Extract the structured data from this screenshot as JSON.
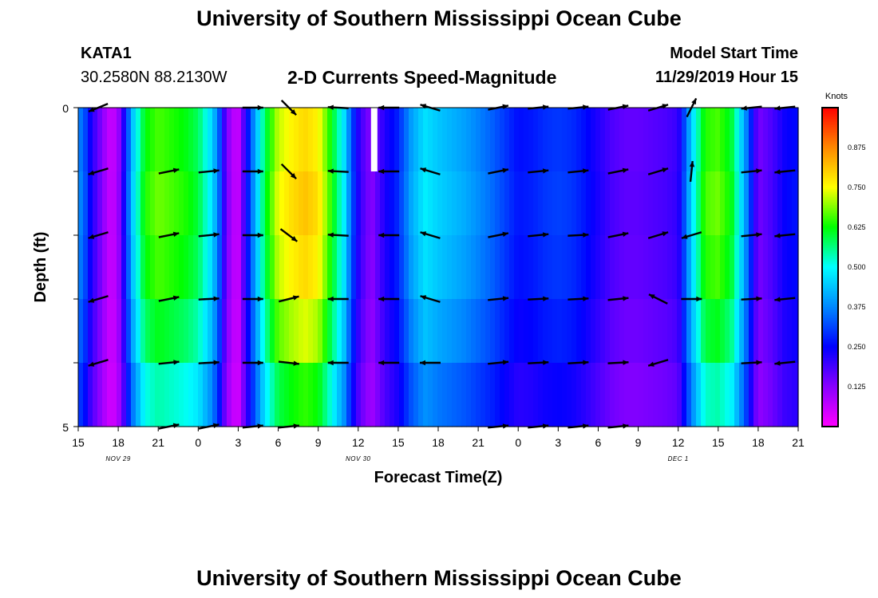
{
  "header": {
    "title": "University of Southern Mississippi Ocean Cube",
    "station": "KATA1",
    "coords": "30.2580N 88.2130W",
    "chart_title": "2-D Currents Speed-Magnitude",
    "model_label": "Model Start Time",
    "model_time": "11/29/2019 Hour 15"
  },
  "footer": {
    "title": "University of Southern Mississippi Ocean Cube"
  },
  "colors": {
    "arrow": "#000000",
    "missing": "#ffffff",
    "scale": [
      "#ff00ff",
      "#8800ff",
      "#0000ff",
      "#0088ff",
      "#00ffff",
      "#00ff00",
      "#ffff00",
      "#ff8800",
      "#ff0000"
    ]
  },
  "chart_data": {
    "type": "heatmap",
    "title": "2-D Currents Speed-Magnitude",
    "xlabel": "Forecast Time(Z)",
    "ylabel": "Depth (ft)",
    "ylim": [
      0,
      5
    ],
    "y_ticks": [
      "0",
      "5"
    ],
    "x_ticks": [
      "15",
      "18",
      "21",
      "0",
      "3",
      "6",
      "9",
      "12",
      "15",
      "18",
      "21",
      "0",
      "3",
      "6",
      "9",
      "12",
      "15",
      "18",
      "21"
    ],
    "date_labels": [
      {
        "text": "NOV 29",
        "at_hour": 3
      },
      {
        "text": "NOV 30",
        "at_hour": 21
      },
      {
        "text": "DEC 1",
        "at_hour": 45
      }
    ],
    "x_range_hours": [
      0,
      54
    ],
    "colorbar": {
      "title": "Knots",
      "range": [
        0.0,
        1.0
      ],
      "ticks": [
        "0.125",
        "0.250",
        "0.375",
        "0.500",
        "0.625",
        "0.750",
        "0.875"
      ]
    },
    "depth_rows": 5,
    "speed_profile": [
      [
        0,
        0.38
      ],
      [
        0.5,
        0.32
      ],
      [
        1,
        0.22
      ],
      [
        1.5,
        0.16
      ],
      [
        2,
        0.1
      ],
      [
        2.5,
        0.05
      ],
      [
        3,
        0.1
      ],
      [
        3.5,
        0.25
      ],
      [
        4,
        0.42
      ],
      [
        5,
        0.62
      ],
      [
        6,
        0.66
      ],
      [
        7,
        0.64
      ],
      [
        8,
        0.62
      ],
      [
        9,
        0.58
      ],
      [
        10,
        0.46
      ],
      [
        10.5,
        0.36
      ],
      [
        11,
        0.18
      ],
      [
        11.5,
        0.08
      ],
      [
        12,
        0.06
      ],
      [
        12.5,
        0.2
      ],
      [
        13,
        0.34
      ],
      [
        14,
        0.58
      ],
      [
        15,
        0.72
      ],
      [
        16,
        0.76
      ],
      [
        17,
        0.79
      ],
      [
        18,
        0.76
      ],
      [
        19,
        0.62
      ],
      [
        20,
        0.46
      ],
      [
        20.5,
        0.32
      ],
      [
        21,
        0.22
      ],
      [
        21.5,
        0.16
      ],
      [
        22,
        0.12
      ],
      [
        23,
        0.22
      ],
      [
        24,
        0.28
      ],
      [
        25,
        0.4
      ],
      [
        26,
        0.47
      ],
      [
        27,
        0.44
      ],
      [
        28,
        0.42
      ],
      [
        29,
        0.4
      ],
      [
        30,
        0.37
      ],
      [
        31,
        0.34
      ],
      [
        32,
        0.3
      ],
      [
        33,
        0.26
      ],
      [
        34,
        0.27
      ],
      [
        35,
        0.29
      ],
      [
        36,
        0.3
      ],
      [
        37,
        0.29
      ],
      [
        38,
        0.26
      ],
      [
        39,
        0.22
      ],
      [
        40,
        0.18
      ],
      [
        41,
        0.16
      ],
      [
        42,
        0.16
      ],
      [
        43,
        0.17
      ],
      [
        44,
        0.18
      ],
      [
        45,
        0.2
      ],
      [
        46,
        0.45
      ],
      [
        47,
        0.64
      ],
      [
        48,
        0.66
      ],
      [
        49,
        0.6
      ],
      [
        50,
        0.4
      ],
      [
        51,
        0.14
      ],
      [
        52,
        0.18
      ],
      [
        53,
        0.24
      ],
      [
        54,
        0.26
      ]
    ],
    "depth_factor": [
      1.0,
      1.03,
      1.0,
      0.93,
      0.82
    ],
    "missing_cells": [
      {
        "hour": 22.2,
        "depth_row": 0
      }
    ],
    "arrows": [
      {
        "hour": 1.5,
        "dir": [
          [
            -1,
            0.4
          ],
          [
            -1,
            0.3
          ],
          [
            -1,
            0.3
          ],
          [
            -1,
            0.3
          ],
          [
            -1,
            0.3
          ]
        ]
      },
      {
        "hour": 6.8,
        "dir": [
          null,
          [
            1,
            -0.2
          ],
          [
            1,
            -0.2
          ],
          [
            1,
            -0.2
          ],
          [
            1,
            -0.1
          ],
          [
            1,
            -0.2
          ]
        ]
      },
      {
        "hour": 9.8,
        "dir": [
          null,
          [
            1,
            -0.1
          ],
          [
            1,
            -0.1
          ],
          [
            1,
            -0.05
          ],
          [
            1,
            -0.05
          ],
          [
            1,
            -0.2
          ]
        ]
      },
      {
        "hour": 13.1,
        "dir": [
          [
            1,
            0
          ],
          [
            1,
            0
          ],
          [
            1,
            0
          ],
          [
            1,
            0
          ],
          [
            1,
            0
          ],
          [
            1,
            -0.1
          ]
        ]
      },
      {
        "hour": 15.8,
        "dir": [
          [
            0.7,
            0.7
          ],
          [
            0.7,
            0.7
          ],
          [
            0.8,
            0.6
          ],
          [
            0.8,
            -0.2
          ],
          [
            0.9,
            0.1
          ],
          [
            1,
            -0.1
          ]
        ]
      },
      {
        "hour": 19.5,
        "dir": [
          [
            -1,
            -0.05
          ],
          [
            -1,
            -0.05
          ],
          [
            -1,
            -0.05
          ],
          [
            -1,
            0
          ],
          [
            -1,
            0
          ]
        ]
      },
      {
        "hour": 23.3,
        "dir": [
          [
            -1,
            0
          ],
          [
            -1,
            0
          ],
          [
            -1,
            0
          ],
          [
            -1,
            0
          ],
          [
            -1,
            0
          ]
        ]
      },
      {
        "hour": 26.4,
        "dir": [
          [
            -1,
            -0.3
          ],
          [
            -1,
            -0.3
          ],
          [
            -1,
            -0.3
          ],
          [
            -1,
            -0.3
          ],
          [
            -1,
            0
          ]
        ]
      },
      {
        "hour": 31.5,
        "dir": [
          [
            1,
            -0.2
          ],
          [
            1,
            -0.2
          ],
          [
            1,
            -0.2
          ],
          [
            1,
            -0.1
          ],
          [
            1,
            -0.1
          ],
          [
            1,
            -0.1
          ]
        ]
      },
      {
        "hour": 34.5,
        "dir": [
          [
            1,
            -0.1
          ],
          [
            1,
            -0.1
          ],
          [
            1,
            -0.1
          ],
          [
            1,
            -0.05
          ],
          [
            1,
            -0.05
          ],
          [
            1,
            -0.1
          ]
        ]
      },
      {
        "hour": 37.5,
        "dir": [
          [
            1,
            -0.1
          ],
          [
            1,
            -0.1
          ],
          [
            1,
            -0.05
          ],
          [
            1,
            -0.05
          ],
          [
            1,
            -0.05
          ],
          [
            1,
            -0.1
          ]
        ]
      },
      {
        "hour": 40.5,
        "dir": [
          [
            1,
            -0.2
          ],
          [
            1,
            -0.2
          ],
          [
            1,
            -0.2
          ],
          [
            1,
            -0.1
          ],
          [
            1,
            -0.05
          ],
          [
            1,
            -0.1
          ]
        ]
      },
      {
        "hour": 43.5,
        "dir": [
          [
            1,
            -0.3
          ],
          [
            1,
            -0.3
          ],
          [
            1,
            -0.3
          ],
          [
            -1,
            -0.5
          ],
          [
            -1,
            0.3
          ]
        ]
      },
      {
        "hour": 46.0,
        "dir": [
          [
            0.5,
            -1
          ],
          [
            0.1,
            -1
          ],
          [
            -1,
            0.3
          ],
          [
            1,
            0
          ]
        ]
      },
      {
        "hour": 50.5,
        "dir": [
          [
            -1,
            0.1
          ],
          [
            1,
            -0.1
          ],
          [
            1,
            -0.1
          ],
          [
            1,
            -0.05
          ],
          [
            1,
            -0.05
          ]
        ]
      },
      {
        "hour": 53.0,
        "dir": [
          [
            -1,
            0.1
          ],
          [
            -1,
            0.1
          ],
          [
            -1,
            0.1
          ],
          [
            -1,
            0.1
          ],
          [
            -1,
            0.1
          ]
        ]
      }
    ]
  }
}
